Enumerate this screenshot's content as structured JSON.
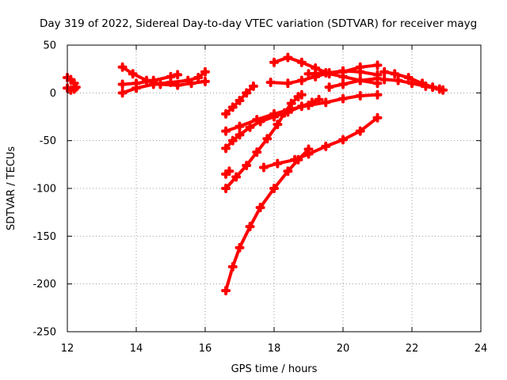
{
  "chart_data": {
    "type": "scatter",
    "title": "Day 319 of 2022, Sidereal Day-to-day VTEC variation (SDTVAR) for receiver mayg",
    "xlabel": "GPS time / hours",
    "ylabel": "SDTVAR / TECUs",
    "xlim": [
      12,
      24
    ],
    "ylim": [
      -250,
      50
    ],
    "xticks": [
      "12",
      "14",
      "16",
      "18",
      "20",
      "22",
      "24"
    ],
    "yticks": [
      "50",
      "0",
      "-50",
      "-100",
      "-150",
      "-200",
      "-250"
    ],
    "grid": true,
    "color": "#ff0000",
    "series": [
      {
        "points": [
          [
            12.0,
            16
          ],
          [
            12.1,
            14
          ],
          [
            12.2,
            10
          ],
          [
            12.25,
            6
          ],
          [
            12.2,
            4
          ],
          [
            12.1,
            3
          ],
          [
            12.0,
            5
          ]
        ]
      },
      {
        "points": [
          [
            13.6,
            27
          ],
          [
            13.9,
            20
          ],
          [
            14.3,
            13
          ],
          [
            14.7,
            9
          ],
          [
            15.2,
            8
          ],
          [
            15.6,
            10
          ],
          [
            16.0,
            12
          ]
        ]
      },
      {
        "points": [
          [
            13.6,
            9
          ],
          [
            14.0,
            10
          ],
          [
            14.5,
            13
          ],
          [
            15.0,
            17
          ],
          [
            15.2,
            19
          ]
        ]
      },
      {
        "points": [
          [
            13.6,
            0
          ],
          [
            14.0,
            5
          ],
          [
            14.5,
            9
          ],
          [
            15.0,
            11
          ],
          [
            15.5,
            13
          ],
          [
            15.8,
            16
          ],
          [
            16.0,
            22
          ]
        ]
      },
      {
        "points": [
          [
            16.6,
            -22
          ],
          [
            16.8,
            -15
          ],
          [
            17.0,
            -8
          ],
          [
            17.2,
            0
          ],
          [
            17.4,
            7
          ]
        ]
      },
      {
        "points": [
          [
            16.6,
            -40
          ],
          [
            17.0,
            -35
          ],
          [
            17.5,
            -28
          ],
          [
            18.0,
            -22
          ],
          [
            18.5,
            -17
          ],
          [
            19.0,
            -13
          ],
          [
            19.5,
            -10
          ],
          [
            20.0,
            -6
          ],
          [
            20.5,
            -3
          ],
          [
            21.0,
            -2
          ]
        ]
      },
      {
        "points": [
          [
            16.6,
            -58
          ],
          [
            16.8,
            -50
          ],
          [
            17.0,
            -44
          ],
          [
            17.3,
            -36
          ],
          [
            17.6,
            -30
          ],
          [
            18.0,
            -25
          ],
          [
            18.4,
            -20
          ],
          [
            18.8,
            -14
          ],
          [
            19.1,
            -10
          ],
          [
            19.3,
            -7
          ]
        ]
      },
      {
        "points": [
          [
            16.6,
            -85
          ],
          [
            16.7,
            -82
          ]
        ]
      },
      {
        "points": [
          [
            16.6,
            -100
          ],
          [
            16.9,
            -88
          ],
          [
            17.2,
            -76
          ],
          [
            17.5,
            -62
          ],
          [
            17.8,
            -48
          ],
          [
            18.1,
            -33
          ],
          [
            18.3,
            -21
          ],
          [
            18.5,
            -11
          ],
          [
            18.7,
            -4
          ],
          [
            18.8,
            -2
          ]
        ]
      },
      {
        "points": [
          [
            16.6,
            -207
          ],
          [
            16.8,
            -182
          ],
          [
            17.0,
            -162
          ],
          [
            17.3,
            -140
          ],
          [
            17.6,
            -120
          ],
          [
            18.0,
            -100
          ],
          [
            18.4,
            -82
          ],
          [
            18.7,
            -70
          ],
          [
            19.0,
            -59
          ]
        ]
      },
      {
        "points": [
          [
            17.7,
            -78
          ],
          [
            18.1,
            -74
          ],
          [
            18.6,
            -70
          ],
          [
            19.0,
            -64
          ],
          [
            19.5,
            -56
          ],
          [
            20.0,
            -49
          ],
          [
            20.5,
            -40
          ],
          [
            21.0,
            -26
          ]
        ]
      },
      {
        "points": [
          [
            18.0,
            32
          ],
          [
            18.4,
            37
          ],
          [
            18.8,
            32
          ],
          [
            19.2,
            26
          ],
          [
            19.6,
            20
          ],
          [
            20.0,
            17
          ],
          [
            20.5,
            13
          ],
          [
            21.0,
            10
          ]
        ]
      },
      {
        "points": [
          [
            17.9,
            11
          ],
          [
            18.4,
            10
          ],
          [
            18.8,
            13
          ],
          [
            19.2,
            17
          ],
          [
            19.6,
            21
          ],
          [
            20.0,
            23
          ],
          [
            20.5,
            22
          ],
          [
            21.0,
            19
          ]
        ]
      },
      {
        "points": [
          [
            19.0,
            20
          ],
          [
            19.5,
            21
          ],
          [
            20.0,
            22
          ],
          [
            20.5,
            27
          ],
          [
            21.0,
            29
          ]
        ]
      },
      {
        "points": [
          [
            19.6,
            6
          ],
          [
            20.0,
            9
          ],
          [
            20.5,
            13
          ],
          [
            21.0,
            15
          ]
        ]
      },
      {
        "points": [
          [
            21.2,
            22
          ],
          [
            21.5,
            20
          ],
          [
            21.9,
            16
          ],
          [
            22.3,
            10
          ],
          [
            22.6,
            6
          ],
          [
            22.9,
            3
          ]
        ]
      },
      {
        "points": [
          [
            21.2,
            14
          ],
          [
            21.6,
            13
          ],
          [
            22.0,
            10
          ],
          [
            22.4,
            7
          ],
          [
            22.8,
            4
          ]
        ]
      }
    ]
  }
}
